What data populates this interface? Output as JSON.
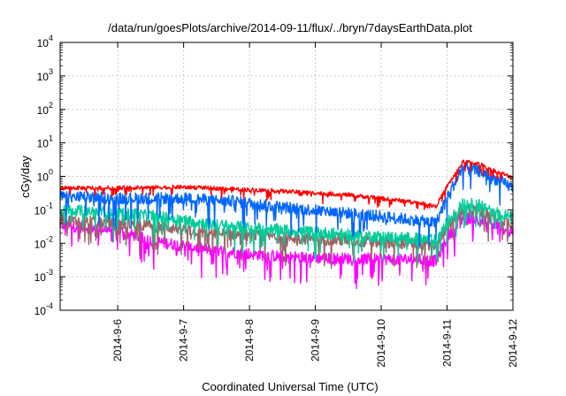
{
  "chart_data": {
    "type": "line",
    "title": "/data/run/goesPlots/archive/2014-09-11/flux/../bryn/7daysEarthData.plot",
    "xlabel": "Coordinated Universal Time (UTC)",
    "ylabel": "cGy/day",
    "yscale": "log",
    "ylim": [
      0.0001,
      10000
    ],
    "xlim": [
      "2014-09-05 03:00",
      "2014-09-12 00:00"
    ],
    "grid": true,
    "y_ticks": [
      {
        "base": "10",
        "exp": "-4"
      },
      {
        "base": "10",
        "exp": "-3"
      },
      {
        "base": "10",
        "exp": "-2"
      },
      {
        "base": "10",
        "exp": "-1"
      },
      {
        "base": "10",
        "exp": "0"
      },
      {
        "base": "10",
        "exp": "1"
      },
      {
        "base": "10",
        "exp": "2"
      },
      {
        "base": "10",
        "exp": "3"
      },
      {
        "base": "10",
        "exp": "4"
      }
    ],
    "x_ticks": [
      "2014-9-6",
      "2014-9-7",
      "2014-9-8",
      "2014-9-9",
      "2014-9-10",
      "2014-9-11",
      "2014-9-12"
    ],
    "series": [
      {
        "color": "#ff0000",
        "points": [
          [
            "2014-09-05 03:00",
            0.45
          ],
          [
            "2014-09-06 00:00",
            0.45
          ],
          [
            "2014-09-07 00:00",
            0.48
          ],
          [
            "2014-09-07 18:00",
            0.42
          ],
          [
            "2014-09-08 12:00",
            0.36
          ],
          [
            "2014-09-09 12:00",
            0.28
          ],
          [
            "2014-09-10 12:00",
            0.17
          ],
          [
            "2014-09-10 20:00",
            0.13
          ],
          [
            "2014-09-11 00:00",
            0.5
          ],
          [
            "2014-09-11 06:00",
            2.8
          ],
          [
            "2014-09-11 12:00",
            2.3
          ],
          [
            "2014-09-11 18:00",
            1.4
          ],
          [
            "2014-09-12 00:00",
            0.9
          ]
        ]
      },
      {
        "color": "#0066ff",
        "points": [
          [
            "2014-09-05 03:00",
            0.25
          ],
          [
            "2014-09-06 00:00",
            0.22
          ],
          [
            "2014-09-07 00:00",
            0.22
          ],
          [
            "2014-09-07 18:00",
            0.18
          ],
          [
            "2014-09-08 12:00",
            0.12
          ],
          [
            "2014-09-09 12:00",
            0.08
          ],
          [
            "2014-09-10 12:00",
            0.05
          ],
          [
            "2014-09-10 20:00",
            0.04
          ],
          [
            "2014-09-11 00:00",
            0.25
          ],
          [
            "2014-09-11 06:00",
            1.9
          ],
          [
            "2014-09-11 12:00",
            1.4
          ],
          [
            "2014-09-11 18:00",
            0.8
          ],
          [
            "2014-09-12 00:00",
            0.45
          ]
        ]
      },
      {
        "color": "#00cc99",
        "points": [
          [
            "2014-09-05 03:00",
            0.1
          ],
          [
            "2014-09-06 00:00",
            0.08
          ],
          [
            "2014-09-06 18:00",
            0.06
          ],
          [
            "2014-09-07 12:00",
            0.035
          ],
          [
            "2014-09-08 12:00",
            0.025
          ],
          [
            "2014-09-09 12:00",
            0.018
          ],
          [
            "2014-09-10 12:00",
            0.014
          ],
          [
            "2014-09-10 20:00",
            0.012
          ],
          [
            "2014-09-11 00:00",
            0.04
          ],
          [
            "2014-09-11 06:00",
            0.16
          ],
          [
            "2014-09-11 12:00",
            0.14
          ],
          [
            "2014-09-11 18:00",
            0.09
          ],
          [
            "2014-09-12 00:00",
            0.055
          ]
        ]
      },
      {
        "color": "#996666",
        "points": [
          [
            "2014-09-05 03:00",
            0.05
          ],
          [
            "2014-09-06 00:00",
            0.04
          ],
          [
            "2014-09-06 18:00",
            0.03
          ],
          [
            "2014-09-07 12:00",
            0.02
          ],
          [
            "2014-09-08 12:00",
            0.015
          ],
          [
            "2014-09-09 12:00",
            0.012
          ],
          [
            "2014-09-10 12:00",
            0.01
          ],
          [
            "2014-09-10 20:00",
            0.009
          ],
          [
            "2014-09-11 00:00",
            0.03
          ],
          [
            "2014-09-11 06:00",
            0.11
          ],
          [
            "2014-09-11 12:00",
            0.09
          ],
          [
            "2014-09-11 18:00",
            0.06
          ],
          [
            "2014-09-12 00:00",
            0.04
          ]
        ]
      },
      {
        "color": "#ff00ff",
        "points": [
          [
            "2014-09-05 03:00",
            0.035
          ],
          [
            "2014-09-06 00:00",
            0.025
          ],
          [
            "2014-09-06 12:00",
            0.012
          ],
          [
            "2014-09-07 12:00",
            0.006
          ],
          [
            "2014-09-08 12:00",
            0.004
          ],
          [
            "2014-09-09 12:00",
            0.0035
          ],
          [
            "2014-09-10 12:00",
            0.0033
          ],
          [
            "2014-09-10 20:00",
            0.003
          ],
          [
            "2014-09-11 00:00",
            0.015
          ],
          [
            "2014-09-11 06:00",
            0.06
          ],
          [
            "2014-09-11 12:00",
            0.05
          ],
          [
            "2014-09-11 18:00",
            0.035
          ],
          [
            "2014-09-12 00:00",
            0.02
          ]
        ]
      }
    ]
  }
}
